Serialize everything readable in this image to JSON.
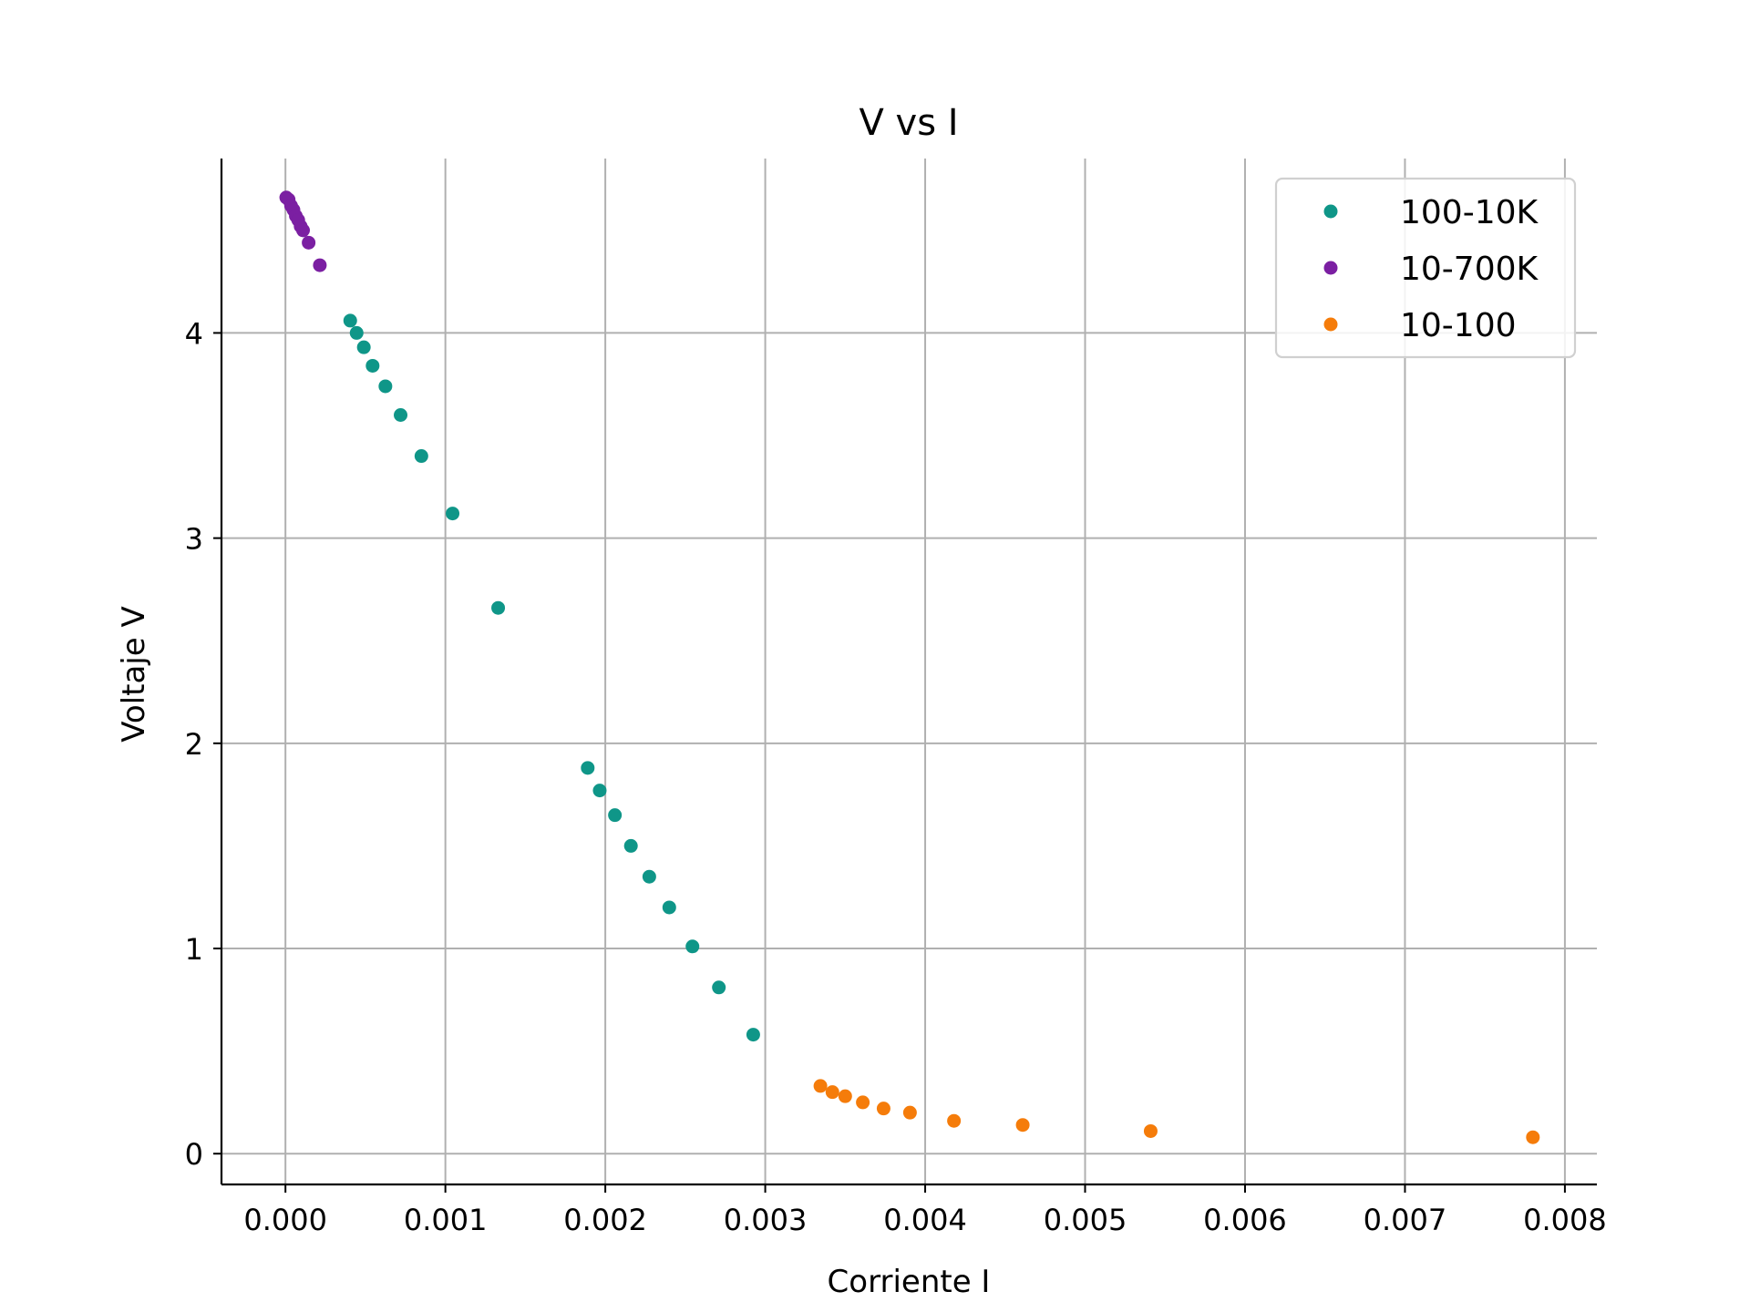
{
  "chart_data": {
    "type": "scatter",
    "title": "V vs I",
    "xlabel": "Corriente I",
    "ylabel": "Voltaje V",
    "xlim": [
      -0.0004,
      0.0082
    ],
    "ylim": [
      -0.15,
      4.85
    ],
    "xticks": [
      0.0,
      0.001,
      0.002,
      0.003,
      0.004,
      0.005,
      0.006,
      0.007,
      0.008
    ],
    "xtick_labels": [
      "0.000",
      "0.001",
      "0.002",
      "0.003",
      "0.004",
      "0.005",
      "0.006",
      "0.007",
      "0.008"
    ],
    "yticks": [
      0,
      1,
      2,
      3,
      4
    ],
    "ytick_labels": [
      "0",
      "1",
      "2",
      "3",
      "4"
    ],
    "grid": true,
    "legend_position": "top-right",
    "series": [
      {
        "name": "100-10K",
        "color": "#0f9688",
        "points": [
          [
            0.000405,
            4.06
          ],
          [
            0.000445,
            4.0
          ],
          [
            0.00049,
            3.93
          ],
          [
            0.000545,
            3.84
          ],
          [
            0.000625,
            3.74
          ],
          [
            0.00072,
            3.6
          ],
          [
            0.00085,
            3.4
          ],
          [
            0.001045,
            3.12
          ],
          [
            0.00133,
            2.66
          ],
          [
            0.00189,
            1.88
          ],
          [
            0.001965,
            1.77
          ],
          [
            0.00206,
            1.65
          ],
          [
            0.00216,
            1.5
          ],
          [
            0.002275,
            1.35
          ],
          [
            0.0024,
            1.2
          ],
          [
            0.002545,
            1.01
          ],
          [
            0.00271,
            0.81
          ],
          [
            0.002925,
            0.58
          ]
        ]
      },
      {
        "name": "10-700K",
        "color": "#7b1fa2",
        "points": [
          [
            5e-06,
            4.66
          ],
          [
            2e-05,
            4.65
          ],
          [
            3.5e-05,
            4.62
          ],
          [
            5e-05,
            4.6
          ],
          [
            6.5e-05,
            4.57
          ],
          [
            8e-05,
            4.55
          ],
          [
            9.5e-05,
            4.52
          ],
          [
            0.00011,
            4.5
          ],
          [
            0.000145,
            4.44
          ],
          [
            0.000215,
            4.33
          ]
        ]
      },
      {
        "name": "10-100",
        "color": "#f57c0a",
        "points": [
          [
            0.003345,
            0.33
          ],
          [
            0.00342,
            0.3
          ],
          [
            0.0035,
            0.28
          ],
          [
            0.00361,
            0.25
          ],
          [
            0.00374,
            0.22
          ],
          [
            0.003905,
            0.2
          ],
          [
            0.00418,
            0.16
          ],
          [
            0.00461,
            0.14
          ],
          [
            0.00541,
            0.11
          ],
          [
            0.0078,
            0.08
          ]
        ]
      }
    ]
  }
}
